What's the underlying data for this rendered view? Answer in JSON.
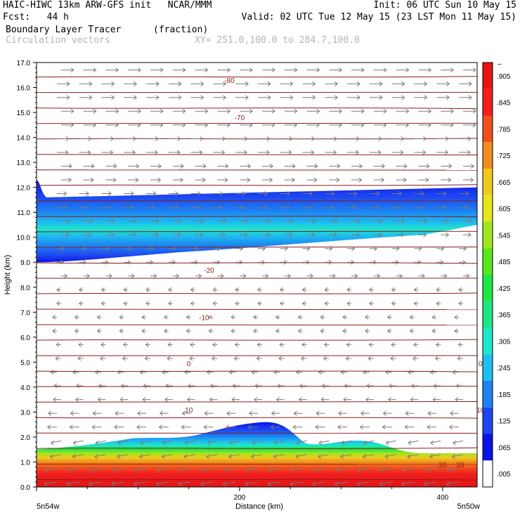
{
  "header": {
    "left_line1": "HAIC-HIWC 13km ARW-GFS init   NCAR/MMM",
    "left_line2": "Fcst:   44 h",
    "right_line1": "Init: 06 UTC Sun 10 May 15",
    "right_line2": "Valid: 02 UTC Tue 12 May 15 (23 LST Mon 11 May 15)",
    "field_label": "Boundary Layer Tracer",
    "field_units": "(fraction)",
    "vector_label": "Circulation vectors",
    "xy_label": "XY= 251.0,100.0 to 284.7,100.0"
  },
  "chart_data": {
    "type": "heatmap",
    "xlabel": "Distance (km)",
    "ylabel": "Height (km)",
    "xlim": [
      0,
      434
    ],
    "ylim": [
      0,
      17
    ],
    "x_ticks": [
      "200",
      "400"
    ],
    "x_tick_values": [
      200,
      400
    ],
    "x_endpoint_labels": [
      "5n54w",
      "5n50w"
    ],
    "y_ticks": [
      "0.0",
      "1.0",
      "2.0",
      "3.0",
      "4.0",
      "5.0",
      "6.0",
      "7.0",
      "8.0",
      "9.0",
      "10.0",
      "11.0",
      "12.0",
      "13.0",
      "14.0",
      "15.0",
      "16.0",
      "17.0"
    ],
    "colorbar": {
      "labels": [
        ".005",
        ".065",
        ".125",
        ".185",
        ".245",
        ".305",
        ".365",
        ".425",
        ".485",
        ".545",
        ".605",
        ".665",
        ".725",
        ".785",
        ".845",
        ".905"
      ],
      "top_label": "–",
      "colors": [
        "#ffffff",
        "#0a14e6",
        "#1e46f0",
        "#1e82f0",
        "#1ebef0",
        "#1ee6c8",
        "#1ee682",
        "#1ee646",
        "#5ae61e",
        "#a0e61e",
        "#e6e61e",
        "#f0c81e",
        "#f08c1e",
        "#f0501e",
        "#f01e1e",
        "#e61414"
      ]
    },
    "temperature_contours": [
      {
        "label": "20",
        "height": 0.9
      },
      {
        "label": "10",
        "height": 3.2
      },
      {
        "label": "0",
        "height": 5.0
      },
      {
        "label": "-10",
        "height": 6.8
      },
      {
        "label": "-20",
        "height": 8.6
      },
      {
        "label": "-70",
        "height": 14.8
      },
      {
        "label": "-80",
        "height": 16.3
      }
    ],
    "upper_tracer_layer": {
      "base_km": 9.0,
      "top_km": 12.2,
      "peak_value": 0.365,
      "peak_height_km": 10.4
    },
    "boundary_layer": {
      "top_km_range": [
        1.0,
        2.6
      ],
      "surface_value": 0.995
    },
    "vectors": {
      "lower_levels": "easterly (leftward)",
      "upper_levels": "westerly (rightward)",
      "reversal_height_km": 8.0
    }
  }
}
